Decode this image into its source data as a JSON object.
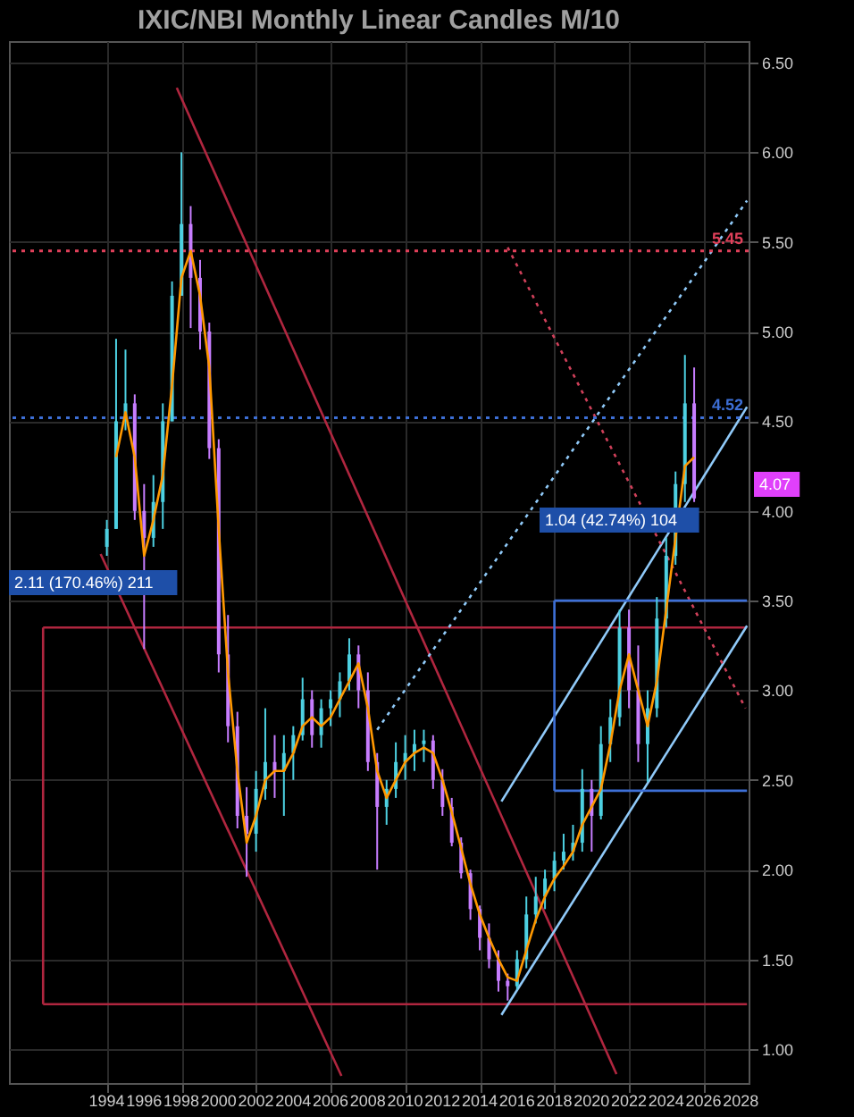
{
  "chart_data": {
    "type": "candlestick",
    "title": "IXIC/NBI Monthly Linear Candles M/10",
    "x": [
      "1994-01",
      "1994-07",
      "1995-01",
      "1995-07",
      "1996-01",
      "1996-07",
      "1997-01",
      "1997-07",
      "1998-01",
      "1998-07",
      "1999-01",
      "1999-07",
      "2000-01",
      "2000-07",
      "2001-01",
      "2001-07",
      "2002-01",
      "2002-07",
      "2003-01",
      "2003-07",
      "2004-01",
      "2004-07",
      "2005-01",
      "2005-07",
      "2006-01",
      "2006-07",
      "2007-01",
      "2007-07",
      "2008-01",
      "2008-07",
      "2009-01",
      "2009-07",
      "2010-01",
      "2010-07",
      "2011-01",
      "2011-07",
      "2012-01",
      "2012-07",
      "2013-01",
      "2013-07",
      "2014-01",
      "2014-07",
      "2015-01",
      "2015-07",
      "2016-01",
      "2016-07",
      "2017-01",
      "2017-07",
      "2018-01",
      "2018-07",
      "2019-01",
      "2019-07",
      "2020-01",
      "2020-07",
      "2021-01",
      "2021-07",
      "2022-01",
      "2022-07",
      "2023-01",
      "2023-07",
      "2024-01",
      "2024-07",
      "2025-01",
      "2025-07"
    ],
    "ohlc": [
      [
        3.8,
        3.95,
        3.75,
        3.9
      ],
      [
        3.9,
        4.96,
        3.9,
        4.5
      ],
      [
        4.5,
        4.9,
        4.45,
        4.6
      ],
      [
        4.6,
        4.65,
        3.95,
        4.0
      ],
      [
        4.0,
        4.15,
        3.23,
        3.85
      ],
      [
        3.85,
        4.2,
        3.8,
        4.05
      ],
      [
        4.05,
        4.6,
        3.9,
        4.5
      ],
      [
        4.5,
        5.28,
        4.5,
        5.2
      ],
      [
        5.2,
        6.0,
        5.2,
        5.6
      ],
      [
        5.6,
        5.7,
        5.02,
        5.3
      ],
      [
        5.3,
        5.4,
        4.9,
        5.0
      ],
      [
        5.0,
        5.05,
        4.29,
        4.35
      ],
      [
        4.35,
        4.4,
        3.1,
        3.2
      ],
      [
        3.2,
        3.42,
        2.71,
        2.8
      ],
      [
        2.8,
        2.88,
        2.23,
        2.3
      ],
      [
        2.3,
        2.46,
        1.96,
        2.2
      ],
      [
        2.2,
        2.55,
        2.1,
        2.45
      ],
      [
        2.45,
        2.9,
        2.39,
        2.6
      ],
      [
        2.6,
        2.75,
        2.4,
        2.55
      ],
      [
        2.55,
        2.75,
        2.3,
        2.65
      ],
      [
        2.65,
        2.8,
        2.5,
        2.75
      ],
      [
        2.75,
        3.07,
        2.72,
        2.95
      ],
      [
        2.95,
        3.0,
        2.68,
        2.75
      ],
      [
        2.75,
        2.95,
        2.68,
        2.9
      ],
      [
        2.9,
        3.0,
        2.8,
        2.95
      ],
      [
        2.95,
        3.1,
        2.85,
        3.05
      ],
      [
        3.05,
        3.29,
        3.0,
        3.2
      ],
      [
        3.2,
        3.25,
        2.9,
        3.0
      ],
      [
        3.0,
        3.1,
        2.55,
        2.6
      ],
      [
        2.6,
        2.65,
        2.0,
        2.35
      ],
      [
        2.35,
        2.5,
        2.25,
        2.45
      ],
      [
        2.45,
        2.71,
        2.4,
        2.6
      ],
      [
        2.6,
        2.75,
        2.5,
        2.65
      ],
      [
        2.65,
        2.78,
        2.55,
        2.7
      ],
      [
        2.7,
        2.78,
        2.6,
        2.72
      ],
      [
        2.72,
        2.75,
        2.45,
        2.5
      ],
      [
        2.5,
        2.56,
        2.3,
        2.35
      ],
      [
        2.35,
        2.4,
        2.13,
        2.15
      ],
      [
        2.15,
        2.18,
        1.95,
        1.98
      ],
      [
        1.98,
        2.0,
        1.72,
        1.78
      ],
      [
        1.78,
        1.8,
        1.55,
        1.62
      ],
      [
        1.62,
        1.7,
        1.45,
        1.5
      ],
      [
        1.5,
        1.55,
        1.32,
        1.38
      ],
      [
        1.38,
        1.42,
        1.27,
        1.35
      ],
      [
        1.35,
        1.55,
        1.33,
        1.5
      ],
      [
        1.5,
        1.85,
        1.45,
        1.75
      ],
      [
        1.75,
        1.96,
        1.7,
        1.85
      ],
      [
        1.85,
        2.0,
        1.78,
        1.95
      ],
      [
        1.95,
        2.1,
        1.88,
        2.05
      ],
      [
        2.05,
        2.2,
        2.0,
        2.1
      ],
      [
        2.1,
        2.25,
        2.05,
        2.15
      ],
      [
        2.15,
        2.56,
        2.1,
        2.45
      ],
      [
        2.45,
        2.5,
        2.1,
        2.3
      ],
      [
        2.3,
        2.8,
        2.28,
        2.7
      ],
      [
        2.7,
        2.95,
        2.6,
        2.85
      ],
      [
        2.85,
        3.45,
        2.8,
        3.35
      ],
      [
        3.35,
        3.45,
        2.9,
        3.0
      ],
      [
        3.0,
        3.25,
        2.6,
        2.7
      ],
      [
        2.7,
        3.0,
        2.49,
        2.9
      ],
      [
        2.9,
        3.52,
        2.85,
        3.4
      ],
      [
        3.4,
        3.85,
        3.35,
        3.75
      ],
      [
        3.75,
        4.22,
        3.7,
        4.15
      ],
      [
        4.15,
        4.87,
        4.05,
        4.6
      ],
      [
        4.6,
        4.8,
        4.05,
        4.07
      ]
    ],
    "colors": [
      "#4dd0e1",
      "#4dd0e1",
      "#4dd0e1",
      "#c77dff",
      "#c77dff",
      "#4dd0e1",
      "#4dd0e1",
      "#4dd0e1",
      "#4dd0e1",
      "#c77dff",
      "#c77dff",
      "#c77dff",
      "#c77dff",
      "#c77dff",
      "#c77dff",
      "#c77dff",
      "#4dd0e1",
      "#4dd0e1",
      "#c77dff",
      "#4dd0e1",
      "#4dd0e1",
      "#4dd0e1",
      "#c77dff",
      "#4dd0e1",
      "#4dd0e1",
      "#4dd0e1",
      "#4dd0e1",
      "#c77dff",
      "#c77dff",
      "#c77dff",
      "#4dd0e1",
      "#4dd0e1",
      "#4dd0e1",
      "#4dd0e1",
      "#4dd0e1",
      "#c77dff",
      "#c77dff",
      "#c77dff",
      "#c77dff",
      "#c77dff",
      "#c77dff",
      "#c77dff",
      "#c77dff",
      "#c77dff",
      "#4dd0e1",
      "#4dd0e1",
      "#4dd0e1",
      "#4dd0e1",
      "#4dd0e1",
      "#4dd0e1",
      "#4dd0e1",
      "#4dd0e1",
      "#c77dff",
      "#4dd0e1",
      "#4dd0e1",
      "#4dd0e1",
      "#c77dff",
      "#c77dff",
      "#4dd0e1",
      "#4dd0e1",
      "#4dd0e1",
      "#4dd0e1",
      "#4dd0e1",
      "#c77dff"
    ],
    "series": [
      {
        "type": "line",
        "color": "#ff9800",
        "line_style": "solid",
        "x": [
          "1994-07",
          "1995-01",
          "1995-07",
          "1996-01",
          "1996-07",
          "1997-01",
          "1997-07",
          "1998-01",
          "1998-07",
          "1999-01",
          "1999-07",
          "2000-01",
          "2000-07",
          "2001-01",
          "2001-07",
          "2002-01",
          "2002-07",
          "2003-01",
          "2003-07",
          "2004-01",
          "2004-07",
          "2005-01",
          "2005-07",
          "2006-01",
          "2006-07",
          "2007-01",
          "2007-07",
          "2008-01",
          "2008-07",
          "2009-01",
          "2009-07",
          "2010-01",
          "2010-07",
          "2011-01",
          "2011-07",
          "2012-01",
          "2012-07",
          "2013-01",
          "2013-07",
          "2014-01",
          "2014-07",
          "2015-01",
          "2015-07",
          "2016-01",
          "2016-07",
          "2017-01",
          "2017-07",
          "2018-01",
          "2018-07",
          "2019-01",
          "2019-07",
          "2020-01",
          "2020-07",
          "2021-01",
          "2021-07",
          "2022-01",
          "2022-07",
          "2023-01",
          "2023-07",
          "2024-01",
          "2024-07",
          "2025-01",
          "2025-07"
        ],
        "values": [
          4.3,
          4.55,
          4.3,
          3.75,
          3.95,
          4.2,
          4.7,
          5.3,
          5.45,
          5.2,
          4.8,
          3.9,
          3.1,
          2.55,
          2.15,
          2.3,
          2.5,
          2.55,
          2.55,
          2.65,
          2.8,
          2.85,
          2.8,
          2.85,
          2.95,
          3.05,
          3.15,
          2.9,
          2.55,
          2.4,
          2.5,
          2.6,
          2.65,
          2.68,
          2.65,
          2.5,
          2.32,
          2.12,
          1.92,
          1.75,
          1.62,
          1.5,
          1.4,
          1.38,
          1.55,
          1.72,
          1.85,
          1.95,
          2.02,
          2.1,
          2.25,
          2.35,
          2.45,
          2.7,
          3.0,
          3.2,
          3.0,
          2.8,
          3.05,
          3.45,
          3.85,
          4.25,
          4.3
        ]
      },
      {
        "type": "line",
        "color": "#b0263f",
        "line_style": "solid",
        "x": [
          "1997-10",
          "2021-05"
        ],
        "values": [
          6.36,
          0.86
        ]
      },
      {
        "type": "line",
        "color": "#b0263f",
        "line_style": "solid",
        "x": [
          "1993-09",
          "2006-08"
        ],
        "values": [
          3.76,
          0.85
        ]
      },
      {
        "type": "line",
        "color": "#b0263f",
        "line_style": "solid",
        "x": [
          "1990-08",
          "2028-05"
        ],
        "values": [
          3.35,
          3.35
        ]
      },
      {
        "type": "line",
        "color": "#b0263f",
        "line_style": "solid",
        "x": [
          "1990-08",
          "2028-05"
        ],
        "values": [
          1.25,
          1.25
        ]
      },
      {
        "type": "line",
        "color": "#b0263f",
        "line_style": "solid",
        "x": [
          "1990-08",
          "1990-08"
        ],
        "values": [
          1.25,
          3.35
        ]
      },
      {
        "type": "line",
        "color": "#90caf9",
        "line_style": "solid",
        "x": [
          "2015-03",
          "2028-05"
        ],
        "values": [
          2.38,
          4.58
        ]
      },
      {
        "type": "line",
        "color": "#90caf9",
        "line_style": "solid",
        "x": [
          "2015-03",
          "2028-05"
        ],
        "values": [
          1.19,
          3.36
        ]
      },
      {
        "type": "line",
        "color": "#90caf9",
        "line_style": "dotted",
        "x": [
          "2008-07",
          "2028-05"
        ],
        "values": [
          2.78,
          5.73
        ]
      },
      {
        "type": "line",
        "color": "#d0405a",
        "line_style": "dotted",
        "x": [
          "2015-07",
          "2028-04"
        ],
        "values": [
          5.47,
          2.9
        ]
      },
      {
        "type": "line",
        "color": "#3d6fd6",
        "line_style": "solid",
        "x": [
          "2018-01",
          "2028-05"
        ],
        "values": [
          3.5,
          3.5
        ]
      },
      {
        "type": "line",
        "color": "#3d6fd6",
        "line_style": "solid",
        "x": [
          "2018-01",
          "2028-05"
        ],
        "values": [
          2.44,
          2.44
        ]
      },
      {
        "type": "line",
        "color": "#3d6fd6",
        "line_style": "solid",
        "x": [
          "2018-01",
          "2018-01"
        ],
        "values": [
          2.44,
          3.5
        ]
      }
    ],
    "ref_lines": [
      {
        "axis": "y",
        "value": 5.45,
        "label": "5.45",
        "color": "#e0405a",
        "line_style": "dotted"
      },
      {
        "axis": "y",
        "value": 4.52,
        "label": "4.52",
        "color": "#3d6fd6",
        "line_style": "dotted"
      }
    ],
    "annotations": [
      "2.11 (170.46%) 211",
      "1.04 (42.74%) 104",
      "4.07"
    ],
    "xlim": [
      "1988-10",
      "2028-06"
    ],
    "xticks": [
      "1994",
      "1996",
      "1998",
      "2000",
      "2002",
      "2004",
      "2006",
      "2008",
      "2010",
      "2012",
      "2014",
      "2016",
      "2018",
      "2020",
      "2022",
      "2024",
      "2026",
      "2028"
    ],
    "ylim": [
      0.81,
      6.62
    ],
    "yticks": [
      {
        "value": 1,
        "label": "1.00"
      },
      {
        "value": 1.5,
        "label": "1.50"
      },
      {
        "value": 2,
        "label": "2.00"
      },
      {
        "value": 2.5,
        "label": "2.50"
      },
      {
        "value": 3,
        "label": "3.00"
      },
      {
        "value": 3.5,
        "label": "3.50"
      },
      {
        "value": 4,
        "label": "4.00"
      },
      {
        "value": 4.5,
        "label": "4.50"
      },
      {
        "value": 5,
        "label": "5.00"
      },
      {
        "value": 5.5,
        "label": "5.50"
      },
      {
        "value": 6,
        "label": "6.00"
      },
      {
        "value": 6.5,
        "label": "6.50"
      }
    ],
    "grid": true
  }
}
